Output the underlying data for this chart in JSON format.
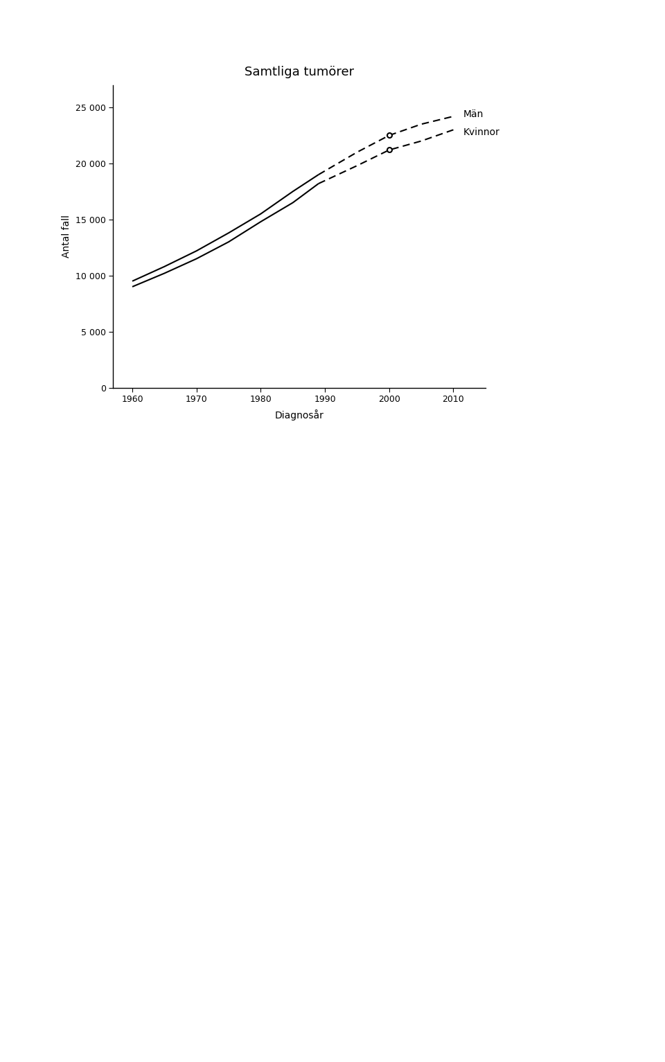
{
  "title": "Samtliga tumörer",
  "ylabel": "Antal fall",
  "xlabel": "Diagnosår",
  "years_solid": [
    1960,
    1965,
    1970,
    1975,
    1980,
    1985,
    1989
  ],
  "men_solid": [
    9500,
    10800,
    12200,
    13800,
    15500,
    17500,
    19000
  ],
  "women_solid": [
    9000,
    10200,
    11500,
    13000,
    14800,
    16500,
    18200
  ],
  "years_dashed": [
    1989,
    1995,
    2000,
    2005,
    2010
  ],
  "men_dashed": [
    19000,
    21000,
    22500,
    23500,
    24200
  ],
  "women_dashed": [
    18200,
    19800,
    21200,
    22000,
    23000
  ],
  "marker_year": 2000,
  "marker_men": 22500,
  "marker_women": 21200,
  "ylim": [
    0,
    27000
  ],
  "yticks": [
    0,
    5000,
    10000,
    15000,
    20000,
    25000
  ],
  "xlim": [
    1957,
    2015
  ],
  "xticks": [
    1960,
    1970,
    1980,
    1990,
    2000,
    2010
  ],
  "label_man": "Män",
  "label_kvinna": "Kvinnor",
  "line_color": "#000000",
  "bg_color": "#ffffff",
  "title_fontsize": 13,
  "label_fontsize": 10,
  "tick_fontsize": 9,
  "anno_man_x": 2011,
  "anno_man_y": 24500,
  "anno_kvinna_x": 2011,
  "anno_kvinna_y": 22700
}
